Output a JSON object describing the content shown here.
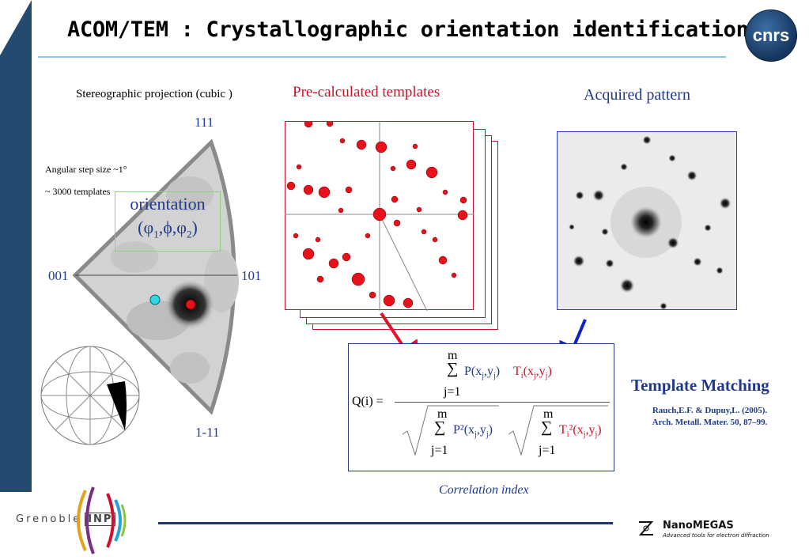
{
  "header": {
    "title": "ACOM/TEM : Crystallographic orientation identification",
    "logo_text": "cnrs"
  },
  "left": {
    "projection_label": "Stereographic projection (cubic )",
    "pole_top": "111",
    "pole_left": "001",
    "pole_right": "101",
    "pole_bottom": "1-11",
    "step_size": "Angular step size ~1°",
    "templates_count": "~ 3000 templates",
    "orientation_title": "orientation",
    "orientation_open": "(φ",
    "orientation_sub1": "1",
    "orientation_mid1": ",ϕ,φ",
    "orientation_sub2": "2",
    "orientation_close": ")"
  },
  "middle": {
    "templates_label": "Pre-calculated templates",
    "caption": "Correlation index"
  },
  "right": {
    "pattern_label": "Acquired pattern"
  },
  "formula": {
    "lhs": "Q(i) =",
    "num_m": "m",
    "num_sum": "∑",
    "num_p": "P(x",
    "num_p_sub": "j",
    "num_p_mid": ",y",
    "num_p_sub2": "j",
    "num_p_close": ")",
    "num_t": "T",
    "num_t_sub": "i",
    "num_t_args": "(x",
    "num_t_sub2": "j",
    "num_t_mid": ",y",
    "num_t_sub3": "j",
    "num_t_close": ")",
    "num_j": "j=1",
    "den1_m": "m",
    "den1_sum": "∑",
    "den1_p": "P²(x",
    "den1_sub": "j",
    "den1_mid": ",y",
    "den1_sub2": "j",
    "den1_close": ")",
    "den1_j": "j=1",
    "den2_m": "m",
    "den2_sum": "∑",
    "den2_t": "T",
    "den2_t_sub": "i",
    "den2_t_rest": "²(x",
    "den2_sub": "j",
    "den2_mid": ",y",
    "den2_sub2": "j",
    "den2_close": ")",
    "den2_j": "j=1"
  },
  "method": {
    "title": "Template Matching",
    "reference_line1": "Rauch,E.F. & Dupuy,L. (2005).",
    "reference_line2": "Arch. Metall. Mater. 50, 87–99."
  },
  "footer": {
    "grenoble_text": "Grenoble",
    "inp_text": "INP",
    "nanomegas_title": "NanoMEGAS",
    "nanomegas_tagline": "Advanced tools for electron diffraction"
  },
  "colors": {
    "sidebar": "#244a70",
    "accent_blue": "#1f3a8c",
    "accent_red": "#d0102a",
    "rule_light_blue": "#8fc6e8"
  }
}
